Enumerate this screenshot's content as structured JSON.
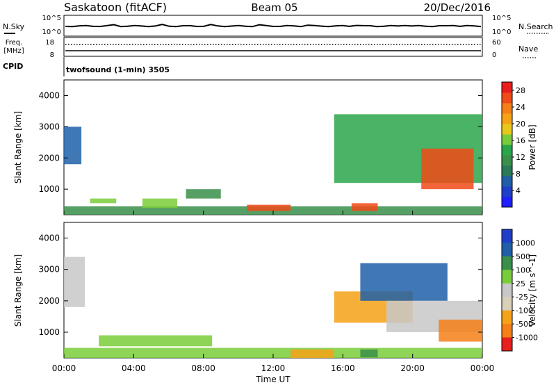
{
  "header": {
    "station": "Saskatoon (fitACF)",
    "beam": "Beam 05",
    "date": "20/Dec/2016"
  },
  "top_strips": {
    "nsky_label": "N.Sky",
    "nsky_ticks": [
      "10^5",
      "10^0"
    ],
    "nsearch_label": "N.Search",
    "nsearch_ticks": [
      "10^5",
      "10^0"
    ],
    "freq_label_1": "Freq.",
    "freq_label_2": "[MHz]",
    "freq_ticks": [
      "18",
      "8"
    ],
    "nave_label": "Nave",
    "nave_ticks": [
      "60",
      "0"
    ],
    "cpid_label": "CPID",
    "cpid_text": "twofsound (1-min) 3505"
  },
  "colors": {
    "power_scale": [
      "#1f1fff",
      "#1f3fc8",
      "#1f5fa8",
      "#2a7a5a",
      "#3a8f4a",
      "#2aa64a",
      "#7acd3a",
      "#e8c81a",
      "#f5a218",
      "#f57f18",
      "#f04a18",
      "#e81e1e"
    ],
    "velocity_scale": [
      "#1f3fc8",
      "#1f5fa8",
      "#2a7a5a",
      "#3a8f4a",
      "#7acd3a",
      "#c8c8c8",
      "#d8d0b8",
      "#f5a218",
      "#f57f18",
      "#f04a18",
      "#e81e1e"
    ]
  },
  "chart_data": [
    {
      "type": "heatmap",
      "title": "",
      "xlabel": "Time UT",
      "ylabel": "Slant Range [km]",
      "x_ticks": [
        "00:00",
        "04:00",
        "08:00",
        "12:00",
        "16:00",
        "20:00",
        "00:00"
      ],
      "y_ticks": [
        "1000",
        "2000",
        "3000",
        "4000"
      ],
      "ylim": [
        180,
        4500
      ],
      "colorbar": {
        "label": "Power [dB]",
        "ticks": [
          "4",
          "8",
          "12",
          "16",
          "20",
          "24",
          "28"
        ],
        "range": [
          0,
          30
        ]
      },
      "regions": [
        {
          "t_start": 0.0,
          "t_end": 1.0,
          "range_min": 1800,
          "range_max": 3000,
          "power": 6
        },
        {
          "t_start": 0.0,
          "t_end": 24.0,
          "range_min": 180,
          "range_max": 450,
          "power": 10
        },
        {
          "t_start": 1.5,
          "t_end": 3.0,
          "range_min": 550,
          "range_max": 700,
          "power": 16
        },
        {
          "t_start": 4.5,
          "t_end": 6.5,
          "range_min": 400,
          "range_max": 700,
          "power": 16
        },
        {
          "t_start": 7.0,
          "t_end": 9.0,
          "range_min": 700,
          "range_max": 1000,
          "power": 10
        },
        {
          "t_start": 10.5,
          "t_end": 13.0,
          "range_min": 300,
          "range_max": 500,
          "power": 26
        },
        {
          "t_start": 16.5,
          "t_end": 18.0,
          "range_min": 300,
          "range_max": 550,
          "power": 26
        },
        {
          "t_start": 15.5,
          "t_end": 24.0,
          "range_min": 1200,
          "range_max": 3400,
          "power": 14
        },
        {
          "t_start": 20.5,
          "t_end": 23.5,
          "range_min": 1000,
          "range_max": 2300,
          "power": 26
        }
      ]
    },
    {
      "type": "heatmap",
      "title": "",
      "xlabel": "Time UT",
      "ylabel": "Slant Range [km]",
      "x_ticks": [
        "00:00",
        "04:00",
        "08:00",
        "12:00",
        "16:00",
        "20:00",
        "00:00"
      ],
      "y_ticks": [
        "1000",
        "2000",
        "3000",
        "4000"
      ],
      "ylim": [
        180,
        4500
      ],
      "colorbar": {
        "label": "Velocity [m s^-1]",
        "ticks": [
          "1000",
          "500",
          "100",
          "25",
          "-25",
          "-100",
          "-500",
          "-1000"
        ]
      },
      "regions": [
        {
          "t_start": 0.0,
          "t_end": 1.2,
          "range_min": 1800,
          "range_max": 3400,
          "velocity": 0
        },
        {
          "t_start": 0.0,
          "t_end": 24.0,
          "range_min": 180,
          "range_max": 500,
          "velocity": 80
        },
        {
          "t_start": 2.0,
          "t_end": 8.5,
          "range_min": 550,
          "range_max": 900,
          "velocity": 80
        },
        {
          "t_start": 13.0,
          "t_end": 15.5,
          "range_min": 180,
          "range_max": 450,
          "velocity": -150
        },
        {
          "t_start": 17.0,
          "t_end": 18.0,
          "range_min": 200,
          "range_max": 450,
          "velocity": 150
        },
        {
          "t_start": 15.5,
          "t_end": 20.0,
          "range_min": 1300,
          "range_max": 2300,
          "velocity": -200
        },
        {
          "t_start": 17.0,
          "t_end": 22.0,
          "range_min": 2000,
          "range_max": 3200,
          "velocity": 300
        },
        {
          "t_start": 18.5,
          "t_end": 24.0,
          "range_min": 1000,
          "range_max": 2000,
          "velocity": 0
        },
        {
          "t_start": 21.5,
          "t_end": 24.0,
          "range_min": 700,
          "range_max": 1400,
          "velocity": -300
        }
      ]
    }
  ]
}
